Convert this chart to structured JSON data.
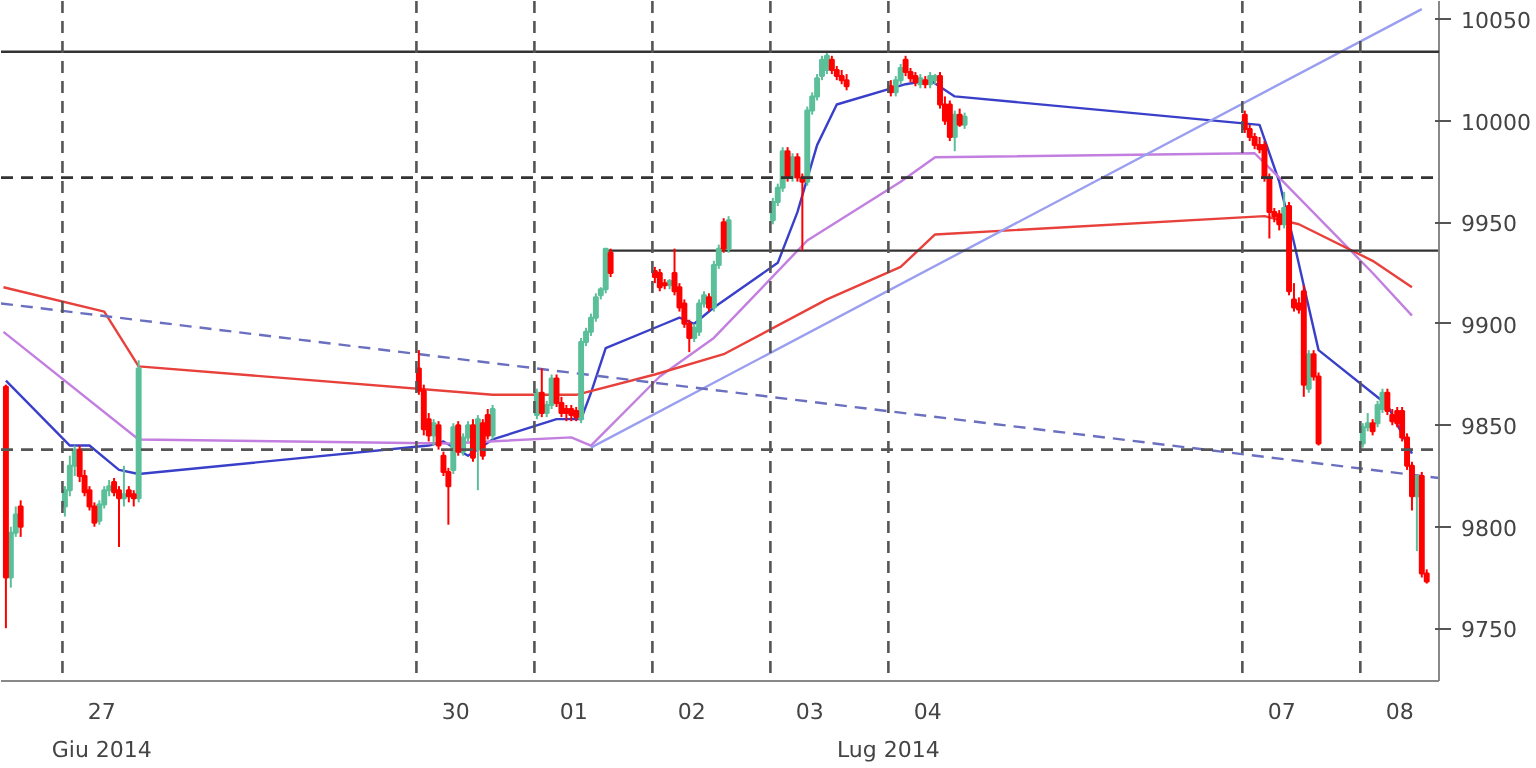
{
  "chart_data": {
    "type": "candlestick",
    "x": [
      "2014-06-26T20:00",
      "2014-06-26T21:00",
      "2014-06-26T22:00",
      "2014-06-26T23:00",
      "2014-06-27T08:00",
      "2014-06-27T09:00",
      "2014-06-27T10:00",
      "2014-06-27T11:00",
      "2014-06-27T12:00",
      "2014-06-27T13:00",
      "2014-06-27T14:00",
      "2014-06-27T15:00",
      "2014-06-27T16:00",
      "2014-06-27T17:00",
      "2014-06-27T18:00",
      "2014-06-27T19:00",
      "2014-06-27T20:00",
      "2014-06-27T21:00",
      "2014-06-27T22:00",
      "2014-06-27T23:00",
      "2014-06-30T08:00",
      "2014-06-30T09:00",
      "2014-06-30T10:00",
      "2014-06-30T11:00",
      "2014-06-30T12:00",
      "2014-06-30T13:00",
      "2014-06-30T14:00",
      "2014-06-30T15:00",
      "2014-06-30T16:00",
      "2014-06-30T17:00",
      "2014-06-30T18:00",
      "2014-06-30T19:00",
      "2014-06-30T20:00",
      "2014-06-30T21:00",
      "2014-06-30T22:00",
      "2014-06-30T23:00",
      "2014-07-01T08:00",
      "2014-07-01T09:00",
      "2014-07-01T10:00",
      "2014-07-01T11:00",
      "2014-07-01T12:00",
      "2014-07-01T13:00",
      "2014-07-01T14:00",
      "2014-07-01T15:00",
      "2014-07-01T16:00",
      "2014-07-01T17:00",
      "2014-07-01T18:00",
      "2014-07-01T19:00",
      "2014-07-01T20:00",
      "2014-07-01T21:00",
      "2014-07-01T22:00",
      "2014-07-01T23:00",
      "2014-07-02T08:00",
      "2014-07-02T09:00",
      "2014-07-02T10:00",
      "2014-07-02T11:00",
      "2014-07-02T12:00",
      "2014-07-02T13:00",
      "2014-07-02T14:00",
      "2014-07-02T15:00",
      "2014-07-02T16:00",
      "2014-07-02T17:00",
      "2014-07-02T18:00",
      "2014-07-02T19:00",
      "2014-07-02T20:00",
      "2014-07-02T21:00",
      "2014-07-02T22:00",
      "2014-07-02T23:00",
      "2014-07-03T08:00",
      "2014-07-03T09:00",
      "2014-07-03T10:00",
      "2014-07-03T11:00",
      "2014-07-03T12:00",
      "2014-07-03T13:00",
      "2014-07-03T14:00",
      "2014-07-03T15:00",
      "2014-07-03T16:00",
      "2014-07-03T17:00",
      "2014-07-03T18:00",
      "2014-07-03T19:00",
      "2014-07-03T20:00",
      "2014-07-03T21:00",
      "2014-07-03T22:00",
      "2014-07-03T23:00",
      "2014-07-04T08:00",
      "2014-07-04T09:00",
      "2014-07-04T10:00",
      "2014-07-04T11:00",
      "2014-07-04T12:00",
      "2014-07-04T13:00",
      "2014-07-04T14:00",
      "2014-07-04T15:00",
      "2014-07-04T16:00",
      "2014-07-04T17:00",
      "2014-07-04T18:00",
      "2014-07-04T19:00",
      "2014-07-04T20:00",
      "2014-07-04T21:00",
      "2014-07-04T22:00",
      "2014-07-04T23:00",
      "2014-07-07T08:00",
      "2014-07-07T09:00",
      "2014-07-07T10:00",
      "2014-07-07T11:00",
      "2014-07-07T12:00",
      "2014-07-07T13:00",
      "2014-07-07T14:00",
      "2014-07-07T15:00",
      "2014-07-07T16:00",
      "2014-07-07T17:00",
      "2014-07-07T18:00",
      "2014-07-07T19:00",
      "2014-07-07T20:00",
      "2014-07-07T21:00",
      "2014-07-07T22:00",
      "2014-07-07T23:00",
      "2014-07-08T08:00",
      "2014-07-08T09:00",
      "2014-07-08T10:00",
      "2014-07-08T11:00",
      "2014-07-08T12:00",
      "2014-07-08T13:00",
      "2014-07-08T14:00",
      "2014-07-08T15:00",
      "2014-07-08T16:00",
      "2014-07-08T17:00",
      "2014-07-08T18:00",
      "2014-07-08T19:00",
      "2014-07-08T20:00",
      "2014-07-08T21:00"
    ],
    "ohlc": [
      [
        9869,
        9870,
        9750,
        9775
      ],
      [
        9775,
        9800,
        9770,
        9797
      ],
      [
        9797,
        9810,
        9795,
        9806
      ],
      [
        9810,
        9813,
        9795,
        9800
      ],
      [
        9810,
        9820,
        9805,
        9818
      ],
      [
        9818,
        9835,
        9815,
        9830
      ],
      [
        9830,
        9840,
        9825,
        9838
      ],
      [
        9838,
        9840,
        9822,
        9825
      ],
      [
        9825,
        9828,
        9815,
        9817
      ],
      [
        9818,
        9820,
        9808,
        9810
      ],
      [
        9810,
        9812,
        9800,
        9802
      ],
      [
        9803,
        9813,
        9801,
        9811
      ],
      [
        9811,
        9820,
        9809,
        9818
      ],
      [
        9818,
        9823,
        9815,
        9820
      ],
      [
        9822,
        9824,
        9815,
        9817
      ],
      [
        9818,
        9820,
        9790,
        9814
      ],
      [
        9814,
        9830,
        9810,
        9816
      ],
      [
        9818,
        9820,
        9812,
        9815
      ],
      [
        9816,
        9818,
        9810,
        9814
      ],
      [
        9814,
        9882,
        9812,
        9878
      ],
      [
        9878,
        9887,
        9865,
        9867
      ],
      [
        9867,
        9870,
        9845,
        9848
      ],
      [
        9853,
        9856,
        9842,
        9845
      ],
      [
        9845,
        9853,
        9840,
        9851
      ],
      [
        9850,
        9852,
        9838,
        9840
      ],
      [
        9835,
        9837,
        9825,
        9827
      ],
      [
        9827,
        9829,
        9801,
        9820
      ],
      [
        9828,
        9851,
        9826,
        9849
      ],
      [
        9850,
        9852,
        9835,
        9837
      ],
      [
        9837,
        9846,
        9835,
        9844
      ],
      [
        9844,
        9852,
        9842,
        9850
      ],
      [
        9850,
        9853,
        9832,
        9834
      ],
      [
        9838,
        9855,
        9818,
        9853
      ],
      [
        9851,
        9853,
        9833,
        9835
      ],
      [
        9855,
        9858,
        9843,
        9845
      ],
      [
        9845,
        9860,
        9843,
        9858
      ],
      [
        9855,
        9868,
        9853,
        9866
      ],
      [
        9866,
        9878,
        9854,
        9856
      ],
      [
        9856,
        9862,
        9854,
        9860
      ],
      [
        9860,
        9875,
        9858,
        9873
      ],
      [
        9873,
        9875,
        9859,
        9861
      ],
      [
        9861,
        9864,
        9854,
        9856
      ],
      [
        9858,
        9860,
        9852,
        9856
      ],
      [
        9858,
        9860,
        9852,
        9855
      ],
      [
        9857,
        9859,
        9852,
        9854
      ],
      [
        9853,
        9893,
        9851,
        9891
      ],
      [
        9891,
        9898,
        9889,
        9896
      ],
      [
        9896,
        9905,
        9894,
        9903
      ],
      [
        9903,
        9915,
        9901,
        9913
      ],
      [
        9914,
        9918,
        9912,
        9917
      ],
      [
        9917,
        9937,
        9915,
        9937
      ],
      [
        9935,
        9937,
        9923,
        9925
      ],
      [
        9926,
        9928,
        9920,
        9923
      ],
      [
        9925,
        9927,
        9916,
        9918
      ],
      [
        9920,
        9922,
        9917,
        9919
      ],
      [
        9919,
        9922,
        9917,
        9921
      ],
      [
        9925,
        9937,
        9914,
        9916
      ],
      [
        9918,
        9920,
        9906,
        9908
      ],
      [
        9910,
        9912,
        9898,
        9900
      ],
      [
        9900,
        9902,
        9886,
        9893
      ],
      [
        9893,
        9900,
        9891,
        9898
      ],
      [
        9896,
        9912,
        9894,
        9910
      ],
      [
        9910,
        9916,
        9908,
        9914
      ],
      [
        9913,
        9915,
        9906,
        9908
      ],
      [
        9908,
        9931,
        9906,
        9929
      ],
      [
        9929,
        9939,
        9927,
        9937
      ],
      [
        9950,
        9952,
        9935,
        9937
      ],
      [
        9937,
        9953,
        9935,
        9951
      ],
      [
        9951,
        9962,
        9949,
        9960
      ],
      [
        9960,
        9969,
        9958,
        9967
      ],
      [
        9967,
        9987,
        9965,
        9985
      ],
      [
        9985,
        9987,
        9970,
        9972
      ],
      [
        9972,
        9984,
        9970,
        9982
      ],
      [
        9982,
        9984,
        9970,
        9972
      ],
      [
        9972,
        9974,
        9936,
        9970
      ],
      [
        9970,
        10007,
        9968,
        10005
      ],
      [
        10005,
        10014,
        10003,
        10012
      ],
      [
        10012,
        10023,
        10010,
        10021
      ],
      [
        10022,
        10032,
        10020,
        10030
      ],
      [
        10025,
        10034,
        10023,
        10032
      ],
      [
        10030,
        10032,
        10023,
        10025
      ],
      [
        10025,
        10027,
        10020,
        10022
      ],
      [
        10022,
        10025,
        10018,
        10020
      ],
      [
        10020,
        10023,
        10015,
        10017
      ],
      [
        10017,
        10020,
        10012,
        10014
      ],
      [
        10014,
        10022,
        10012,
        10020
      ],
      [
        10020,
        10028,
        10018,
        10026
      ],
      [
        10030,
        10032,
        10022,
        10024
      ],
      [
        10024,
        10026,
        10019,
        10021
      ],
      [
        10022,
        10024,
        10017,
        10019
      ],
      [
        10018,
        10023,
        10016,
        10021
      ],
      [
        10020,
        10022,
        10016,
        10018
      ],
      [
        10018,
        10024,
        10016,
        10022
      ],
      [
        10020,
        10023,
        10018,
        10022
      ],
      [
        10022,
        10024,
        10006,
        10008
      ],
      [
        10008,
        10012,
        9998,
        10000
      ],
      [
        10008,
        10010,
        9990,
        9992
      ],
      [
        9992,
        10005,
        9985,
        10003
      ],
      [
        10003,
        10006,
        9997,
        9998
      ],
      [
        9998,
        10004,
        9996,
        10002
      ],
      [
        10003,
        10005,
        9994,
        9996
      ],
      [
        9996,
        9998,
        9990,
        9992
      ],
      [
        9992,
        9994,
        9986,
        9988
      ],
      [
        9988,
        9992,
        9984,
        9986
      ],
      [
        9988,
        9990,
        9970,
        9972
      ],
      [
        9972,
        9974,
        9942,
        9955
      ],
      [
        9955,
        9957,
        9950,
        9953
      ],
      [
        9954,
        9956,
        9946,
        9949
      ],
      [
        9949,
        9965,
        9947,
        9957
      ],
      [
        9958,
        9960,
        9914,
        9916
      ],
      [
        9912,
        9920,
        9906,
        9908
      ],
      [
        9910,
        9913,
        9905,
        9907
      ],
      [
        9916,
        9919,
        9864,
        9870
      ],
      [
        9868,
        9887,
        9866,
        9885
      ],
      [
        9885,
        9887,
        9872,
        9874
      ],
      [
        9874,
        9876,
        9840,
        9841
      ],
      [
        9841,
        9851,
        9839,
        9849
      ],
      [
        9849,
        9856,
        9847,
        9851
      ],
      [
        9851,
        9853,
        9845,
        9847
      ],
      [
        9851,
        9862,
        9849,
        9860
      ],
      [
        9858,
        9868,
        9856,
        9866
      ],
      [
        9866,
        9868,
        9855,
        9857
      ],
      [
        9855,
        9858,
        9850,
        9852
      ],
      [
        9857,
        9859,
        9849,
        9851
      ],
      [
        9857,
        9859,
        9842,
        9844
      ],
      [
        9844,
        9846,
        9828,
        9830
      ],
      [
        9830,
        9832,
        9808,
        9815
      ],
      [
        9815,
        9825,
        9788,
        9825
      ],
      [
        9825,
        9827,
        9775,
        9777
      ],
      [
        9777,
        9779,
        9772,
        9773
      ]
    ],
    "series": [
      {
        "type": "line",
        "color": "#3a3fc9",
        "x": [
          "2014-06-26T20:00",
          "2014-06-27T09:00",
          "2014-06-27T13:00",
          "2014-06-27T19:00",
          "2014-06-27T23:00",
          "2014-06-30T10:00",
          "2014-06-30T13:00",
          "2014-06-30T18:00",
          "2014-06-30T23:00",
          "2014-07-01T12:00",
          "2014-07-01T17:00",
          "2014-07-01T19:00",
          "2014-07-01T22:00",
          "2014-07-02T10:00",
          "2014-07-02T13:00",
          "2014-07-02T16:00",
          "2014-07-02T20:00",
          "2014-07-03T09:00",
          "2014-07-03T13:00",
          "2014-07-03T17:00",
          "2014-07-03T21:00",
          "2014-07-04T11:00",
          "2014-07-04T16:00",
          "2014-07-04T21:00",
          "2014-07-07T11:00",
          "2014-07-07T15:00",
          "2014-07-07T18:00",
          "2014-07-07T23:00",
          "2014-07-08T13:00",
          "2014-07-08T18:00"
        ],
        "values": [
          9872,
          9840,
          9840,
          9828,
          9826,
          9840,
          9842,
          9835,
          9843,
          9853,
          9853,
          9866,
          9888,
          9900,
          9903,
          9900,
          9908,
          9930,
          9955,
          9988,
          10008,
          10018,
          10020,
          10012,
          9998,
          9970,
          9940,
          9887,
          9860,
          9836
        ]
      },
      {
        "type": "line",
        "color": "#c27fe0",
        "x": [
          "2014-06-26T19:30",
          "2014-06-27T23:00",
          "2014-06-30T14:00",
          "2014-07-01T15:00",
          "2014-07-01T19:00",
          "2014-07-02T09:00",
          "2014-07-02T20:00",
          "2014-07-03T15:00",
          "2014-07-04T10:00",
          "2014-07-04T17:00",
          "2014-07-07T10:00",
          "2014-07-07T15:00",
          "2014-07-08T10:00",
          "2014-07-08T18:00"
        ],
        "values": [
          9896,
          9843,
          9841,
          9844,
          9840,
          9874,
          9893,
          9941,
          9970,
          9982,
          9984,
          9972,
          9925,
          9904
        ]
      },
      {
        "type": "line",
        "color": "#e8403a",
        "x": [
          "2014-06-26T19:30",
          "2014-06-27T16:00",
          "2014-06-27T23:00",
          "2014-06-30T23:00",
          "2014-07-01T16:00",
          "2014-07-02T08:00",
          "2014-07-02T22:00",
          "2014-07-03T19:00",
          "2014-07-04T10:00",
          "2014-07-04T17:00",
          "2014-07-07T12:00",
          "2014-07-07T19:00",
          "2014-07-08T10:00",
          "2014-07-08T18:00"
        ],
        "values": [
          9918,
          9906,
          9879,
          9865,
          9865,
          9875,
          9885,
          9912,
          9928,
          9944,
          9953,
          9949,
          9931,
          9918
        ]
      },
      {
        "type": "line",
        "color": "#9a9ef0",
        "x": [
          "2014-07-01T19:00",
          "2014-07-08T20:00"
        ],
        "values": [
          9839,
          10055
        ]
      },
      {
        "type": "line",
        "color": "#6a6fc0",
        "line_style": "dashed",
        "x": [
          "2014-06-26T19:00",
          "2014-07-08T23:30"
        ],
        "values": [
          9910,
          9824
        ]
      },
      {
        "type": "line",
        "color": "#333333",
        "x": [
          "2014-07-01T22:00",
          "2014-07-08T23:30"
        ],
        "values": [
          9936,
          9936
        ]
      }
    ],
    "ref_lines": [
      {
        "axis": "y",
        "value": 10034,
        "color": "#333333",
        "line_style": "solid"
      },
      {
        "axis": "y",
        "value": 9972,
        "color": "#333333",
        "line_style": "dashed"
      },
      {
        "axis": "y",
        "value": 9838,
        "color": "#555555",
        "line_style": "dashed"
      },
      {
        "axis": "x",
        "value": "2014-06-27T07:30",
        "color": "#555555",
        "line_style": "dashed"
      },
      {
        "axis": "x",
        "value": "2014-06-30T07:30",
        "color": "#555555",
        "line_style": "dashed"
      },
      {
        "axis": "x",
        "value": "2014-07-01T07:30",
        "color": "#555555",
        "line_style": "dashed"
      },
      {
        "axis": "x",
        "value": "2014-07-02T07:30",
        "color": "#555555",
        "line_style": "dashed"
      },
      {
        "axis": "x",
        "value": "2014-07-03T07:30",
        "color": "#555555",
        "line_style": "dashed"
      },
      {
        "axis": "x",
        "value": "2014-07-04T07:30",
        "color": "#555555",
        "line_style": "dashed"
      },
      {
        "axis": "x",
        "value": "2014-07-07T07:30",
        "color": "#555555",
        "line_style": "dashed"
      },
      {
        "axis": "x",
        "value": "2014-07-08T07:30",
        "color": "#555555",
        "line_style": "dashed"
      }
    ],
    "xlim": [
      "2014-06-26T19:00",
      "2014-07-08T23:30"
    ],
    "xticks": [
      {
        "value": "2014-06-27T15:30",
        "label": "27"
      },
      {
        "value": "2014-06-30T15:30",
        "label": "30"
      },
      {
        "value": "2014-07-01T15:30",
        "label": "01"
      },
      {
        "value": "2014-07-02T15:30",
        "label": "02"
      },
      {
        "value": "2014-07-03T15:30",
        "label": "03"
      },
      {
        "value": "2014-07-04T15:30",
        "label": "04"
      },
      {
        "value": "2014-07-07T15:30",
        "label": "07"
      },
      {
        "value": "2014-07-08T15:30",
        "label": "08"
      }
    ],
    "x2lim": [
      "2014-06-26T19:00",
      "2014-07-08T23:30"
    ],
    "x2ticks": [
      {
        "value": "2014-06-27T15:30",
        "label": "Giu 2014"
      },
      {
        "value": "2014-07-04T07:30",
        "label": "Lug 2014"
      }
    ],
    "ylim": [
      9724,
      10059
    ],
    "yticks": [
      9750,
      9800,
      9850,
      9900,
      9950,
      10000,
      10050
    ],
    "grid": false
  }
}
